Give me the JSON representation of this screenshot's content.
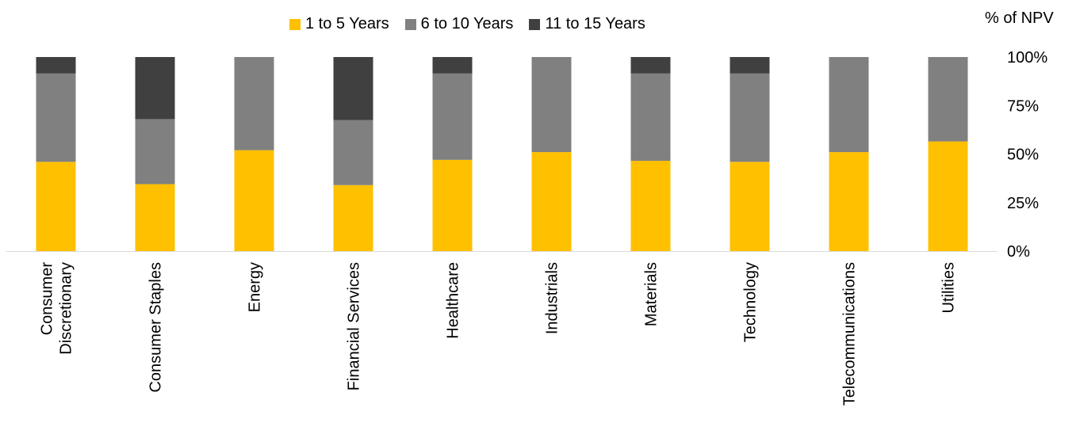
{
  "chart_data": {
    "type": "bar",
    "stacked": true,
    "categories": [
      "Consumer Discretionary",
      "Consumer Staples",
      "Energy",
      "Financial Services",
      "Healthcare",
      "Industrials",
      "Materials",
      "Technology",
      "Telecommunications",
      "Utilities"
    ],
    "category_lines": [
      [
        "Consumer",
        "Discretionary"
      ],
      [
        "Consumer Staples"
      ],
      [
        "Energy"
      ],
      [
        "Financial Services"
      ],
      [
        "Healthcare"
      ],
      [
        "Industrials"
      ],
      [
        "Materials"
      ],
      [
        "Technology"
      ],
      [
        "Telecommunications"
      ],
      [
        "Utilities"
      ]
    ],
    "series": [
      {
        "name": "1 to 5 Years",
        "color": "#FFC000",
        "values": [
          46,
          34.5,
          52,
          34,
          47,
          51,
          46.5,
          46,
          51,
          56.5
        ]
      },
      {
        "name": "6 to 10 Years",
        "color": "#808080",
        "values": [
          45.5,
          33.5,
          48,
          33.5,
          44.5,
          49,
          45,
          45.5,
          49,
          43.5
        ]
      },
      {
        "name": "11 to 15 Years",
        "color": "#404040",
        "values": [
          8.5,
          32,
          0,
          32.5,
          8.5,
          0,
          8.5,
          8.5,
          0,
          0
        ]
      }
    ],
    "unit_label": "% of NPV",
    "yticks": [
      "0%",
      "25%",
      "50%",
      "75%",
      "100%"
    ],
    "ylim": [
      0,
      100
    ],
    "legend_position": "top",
    "y_axis_side": "right",
    "grid": false
  }
}
